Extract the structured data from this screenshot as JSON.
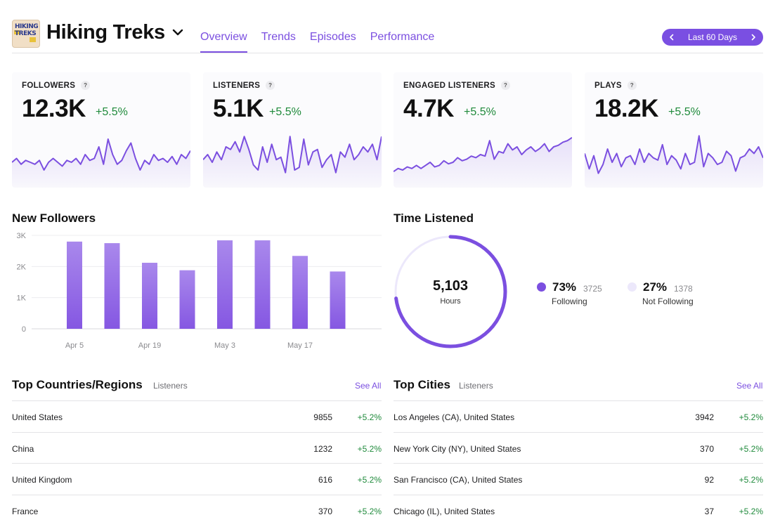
{
  "header": {
    "podcast_title": "Hiking Treks",
    "logo_text": "HIKING TREKS",
    "tabs": [
      {
        "label": "Overview",
        "active": true
      },
      {
        "label": "Trends",
        "active": false
      },
      {
        "label": "Episodes",
        "active": false
      },
      {
        "label": "Performance",
        "active": false
      }
    ],
    "date_range": "Last 60 Days"
  },
  "metrics": [
    {
      "label": "FOLLOWERS",
      "value": "12.3K",
      "delta": "+5.5%",
      "spark": [
        34,
        36,
        33,
        35,
        34,
        33,
        35,
        30,
        34,
        36,
        34,
        32,
        35,
        34,
        36,
        33,
        38,
        35,
        36,
        42,
        33,
        46,
        38,
        33,
        35,
        40,
        44,
        36,
        30,
        35,
        33,
        38,
        35,
        36,
        34,
        37,
        33,
        38,
        36,
        40
      ]
    },
    {
      "label": "LISTENERS",
      "value": "5.1K",
      "delta": "+5.5%",
      "spark": [
        30,
        34,
        28,
        36,
        30,
        40,
        38,
        44,
        36,
        48,
        38,
        26,
        22,
        40,
        28,
        42,
        30,
        32,
        20,
        48,
        22,
        24,
        46,
        26,
        36,
        38,
        24,
        30,
        34,
        20,
        36,
        32,
        42,
        30,
        34,
        40,
        36,
        42,
        30,
        48
      ]
    },
    {
      "label": "ENGAGED LISTENERS",
      "value": "4.7K",
      "delta": "+5.5%",
      "spark": [
        24,
        26,
        25,
        27,
        26,
        28,
        26,
        28,
        30,
        27,
        28,
        31,
        29,
        30,
        33,
        31,
        32,
        34,
        33,
        35,
        34,
        44,
        32,
        37,
        36,
        42,
        38,
        40,
        35,
        38,
        40,
        37,
        39,
        42,
        37,
        40,
        41,
        43,
        44,
        46
      ]
    },
    {
      "label": "PLAYS",
      "value": "18.2K",
      "delta": "+5.5%",
      "spark": [
        40,
        26,
        38,
        22,
        30,
        44,
        32,
        40,
        28,
        36,
        38,
        30,
        44,
        32,
        40,
        36,
        34,
        48,
        30,
        38,
        34,
        26,
        40,
        30,
        32,
        56,
        28,
        40,
        36,
        30,
        32,
        42,
        38,
        24,
        36,
        38,
        44,
        40,
        46,
        36
      ]
    }
  ],
  "new_followers": {
    "title": "New Followers",
    "chart_data": {
      "type": "bar",
      "categories": [
        "",
        "",
        "",
        "",
        "",
        "",
        "",
        ""
      ],
      "x_tick_labels": [
        "Apr 5",
        "Apr 19",
        "May 3",
        "May 17"
      ],
      "y_tick_labels": [
        "3K",
        "2K",
        "1K",
        "0"
      ],
      "values": [
        2800,
        2750,
        2120,
        1880,
        2840,
        2840,
        2340,
        1840
      ],
      "ylim": [
        0,
        3000
      ],
      "grid": true,
      "color": "#8f63e6"
    }
  },
  "time_listened": {
    "title": "Time Listened",
    "total": "5,103",
    "unit": "Hours",
    "segments": [
      {
        "pct": "73%",
        "count": "3725",
        "name": "Following",
        "color": "#7b4fe0",
        "fraction": 0.73
      },
      {
        "pct": "27%",
        "count": "1378",
        "name": "Not Following",
        "color": "#ece8fb",
        "fraction": 0.27
      }
    ]
  },
  "top_countries": {
    "title": "Top Countries/Regions",
    "subtitle": "Listeners",
    "see_all": "See All",
    "rows": [
      {
        "name": "United States",
        "value": "9855",
        "delta": "+5.2%"
      },
      {
        "name": "China",
        "value": "1232",
        "delta": "+5.2%"
      },
      {
        "name": "United Kingdom",
        "value": "616",
        "delta": "+5.2%"
      },
      {
        "name": "France",
        "value": "370",
        "delta": "+5.2%"
      }
    ]
  },
  "top_cities": {
    "title": "Top Cities",
    "subtitle": "Listeners",
    "see_all": "See All",
    "rows": [
      {
        "name": "Los Angeles (CA), United States",
        "value": "3942",
        "delta": "+5.2%"
      },
      {
        "name": "New York City (NY), United States",
        "value": "370",
        "delta": "+5.2%"
      },
      {
        "name": "San Francisco (CA), United States",
        "value": "92",
        "delta": "+5.2%"
      },
      {
        "name": "Chicago (IL), United States",
        "value": "37",
        "delta": "+5.2%"
      }
    ]
  },
  "colors": {
    "accent": "#7b4fe0",
    "positive": "#1f8a3b"
  }
}
